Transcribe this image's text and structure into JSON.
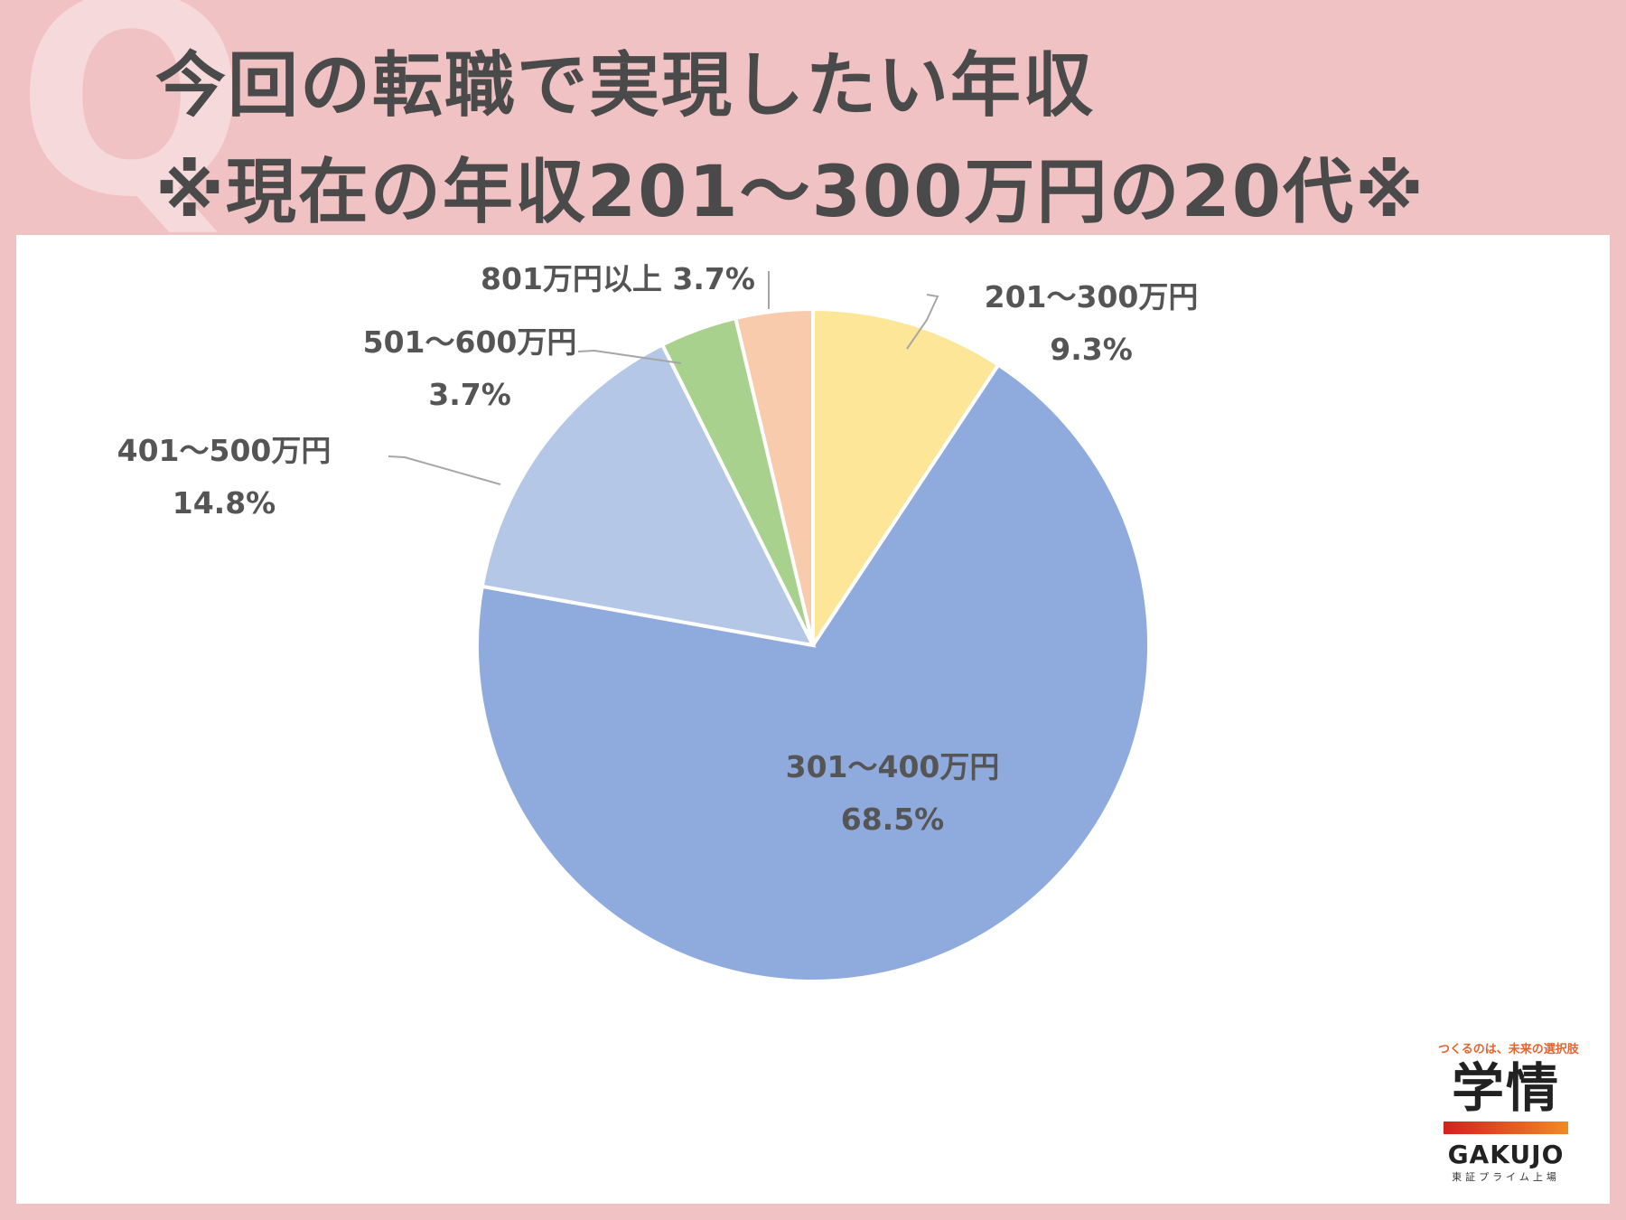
{
  "header": {
    "q_letter": "Q",
    "title_line1": "今回の転職で実現したい年収",
    "title_line2": "※現在の年収201～300万円の20代※"
  },
  "chart_data": {
    "type": "pie",
    "title": "今回の転職で実現したい年収 ※現在の年収201～300万円の20代※",
    "start_angle_deg": 0,
    "direction": "clockwise",
    "slices": [
      {
        "label": "201～300万円",
        "value": 9.3,
        "display": "9.3%",
        "color": "#fde698"
      },
      {
        "label": "301～400万円",
        "value": 68.5,
        "display": "68.5%",
        "color": "#8faadc"
      },
      {
        "label": "401～500万円",
        "value": 14.8,
        "display": "14.8%",
        "color": "#b4c7e7"
      },
      {
        "label": "501～600万円",
        "value": 3.7,
        "display": "3.7%",
        "color": "#a9d18e"
      },
      {
        "label": "801万円以上",
        "value": 3.7,
        "display": "3.7%",
        "color": "#f8cbad"
      }
    ]
  },
  "logo": {
    "tagline": "つくるのは、未来の選択肢",
    "name_kanji": "学情",
    "name_en": "GAKUJO",
    "sub": "東証プライム上場"
  }
}
